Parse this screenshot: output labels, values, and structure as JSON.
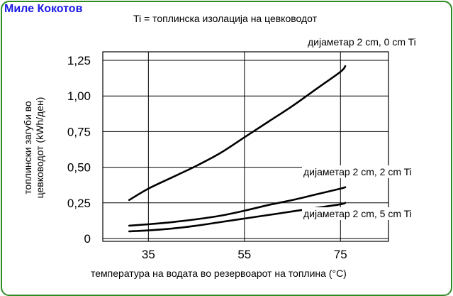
{
  "author": "Миле Кокотов",
  "legend_note": "Ti   = топлинска изолација на цевководот",
  "chart_data": {
    "type": "line",
    "title": "",
    "xlabel": "температура на водата во резервоарот на топлина (°C)",
    "ylabel_lines": [
      "топлински загуби во",
      "цевководот (kWh/ден)"
    ],
    "x_ticks": [
      "35",
      "55",
      "75"
    ],
    "x_tick_values": [
      35,
      55,
      75
    ],
    "y_ticks": [
      "0",
      "0,25",
      "0,50",
      "0,75",
      "1,00",
      "1,25"
    ],
    "y_tick_values": [
      0,
      0.25,
      0.5,
      0.75,
      1.0,
      1.25
    ],
    "xlim": [
      25.5,
      85
    ],
    "ylim": [
      -0.02,
      1.31
    ],
    "grid": true,
    "series": [
      {
        "name": "дијаметар 2 cm, 0 cm Ti",
        "x": [
          31,
          35,
          40,
          45,
          50,
          55,
          60,
          65,
          70,
          75,
          76
        ],
        "y": [
          0.27,
          0.35,
          0.43,
          0.51,
          0.6,
          0.71,
          0.82,
          0.93,
          1.05,
          1.17,
          1.21
        ]
      },
      {
        "name": "дијаметар 2 cm, 2 cm Ti",
        "x": [
          31,
          35,
          40,
          45,
          50,
          55,
          60,
          65,
          70,
          75,
          76
        ],
        "y": [
          0.09,
          0.1,
          0.115,
          0.135,
          0.16,
          0.195,
          0.235,
          0.27,
          0.31,
          0.35,
          0.36
        ]
      },
      {
        "name": "дијаметар 2 cm, 5 cm Ti",
        "x": [
          31,
          35,
          40,
          45,
          50,
          55,
          60,
          65,
          70,
          75,
          76
        ],
        "y": [
          0.05,
          0.057,
          0.07,
          0.09,
          0.115,
          0.14,
          0.165,
          0.19,
          0.215,
          0.24,
          0.25
        ]
      }
    ]
  }
}
